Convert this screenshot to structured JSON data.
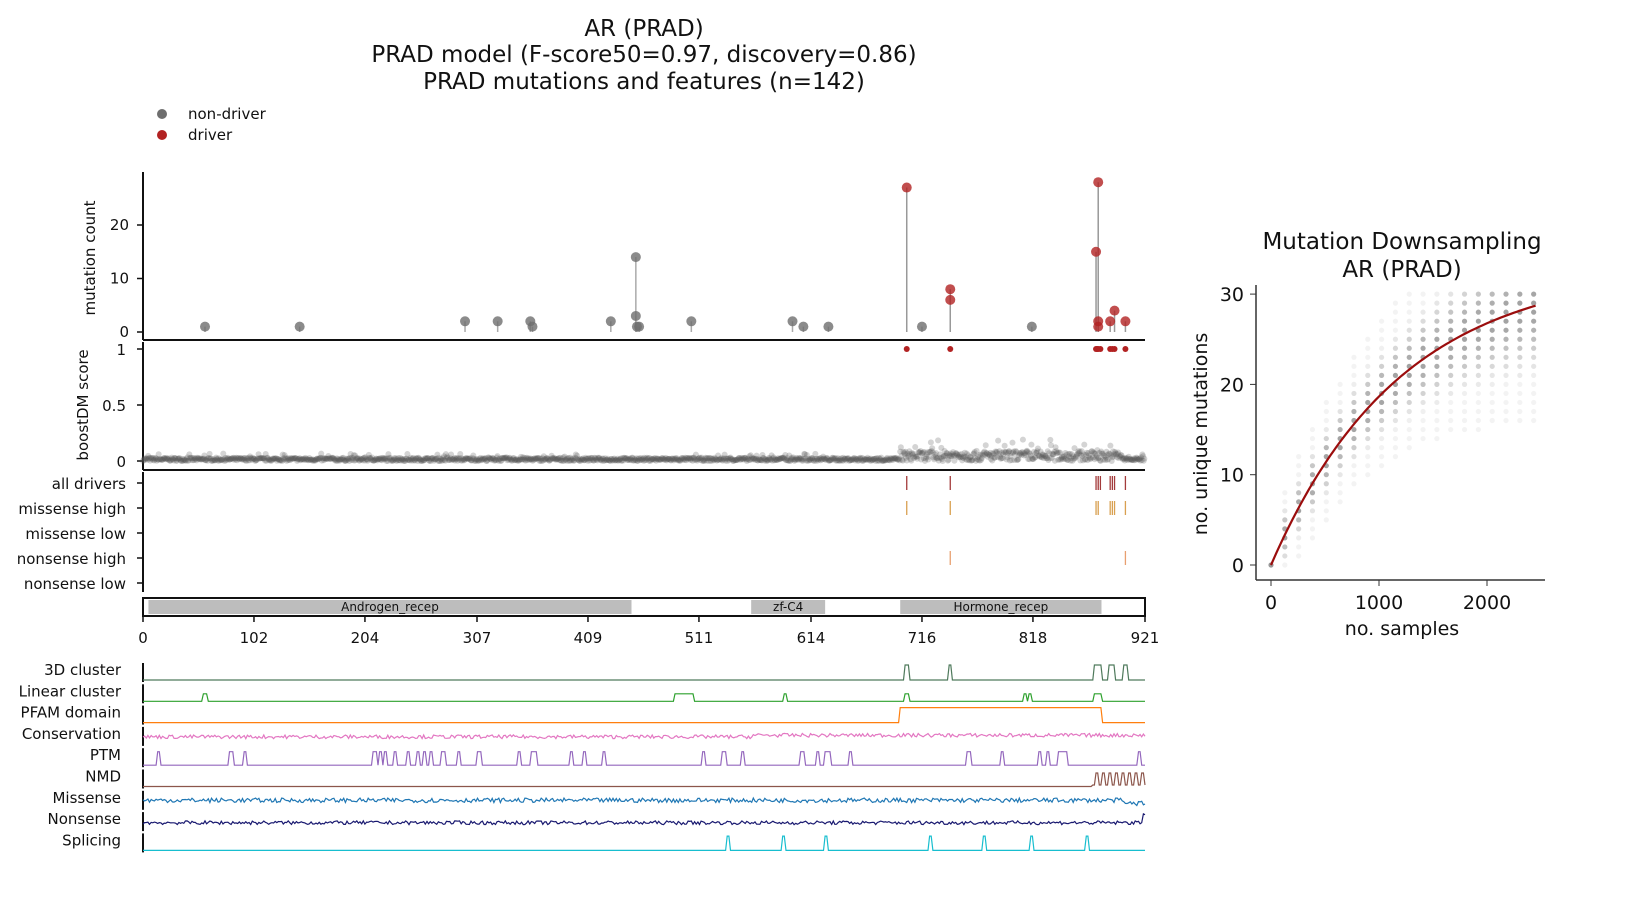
{
  "titles": {
    "line1": "AR (PRAD)",
    "line2": "PRAD model (F-score50=0.97, discovery=0.86)",
    "line3": "PRAD mutations and features (n=142)"
  },
  "legend": [
    {
      "label": "non-driver",
      "color": "#6e6e6e"
    },
    {
      "label": "driver",
      "color": "#b22222"
    }
  ],
  "colors": {
    "nondriver": "#6e6e6e",
    "driver": "#b22222",
    "domain": "#bdbdbd",
    "curve": "#9b0d0d"
  },
  "chart_data": [
    {
      "type": "scatter",
      "name": "mutation-lollipop",
      "ylabel": "mutation count",
      "xlim": [
        0,
        921
      ],
      "ylim": [
        0,
        30
      ],
      "yticks": [
        0,
        10,
        20
      ],
      "mutations": [
        {
          "pos": 57,
          "count": 1,
          "driver": false
        },
        {
          "pos": 144,
          "count": 1,
          "driver": false
        },
        {
          "pos": 296,
          "count": 2,
          "driver": false
        },
        {
          "pos": 326,
          "count": 2,
          "driver": false
        },
        {
          "pos": 356,
          "count": 2,
          "driver": false
        },
        {
          "pos": 358,
          "count": 1,
          "driver": false
        },
        {
          "pos": 430,
          "count": 2,
          "driver": false
        },
        {
          "pos": 453,
          "count": 14,
          "driver": false
        },
        {
          "pos": 453,
          "count": 3,
          "driver": false
        },
        {
          "pos": 454,
          "count": 1,
          "driver": false
        },
        {
          "pos": 456,
          "count": 1,
          "driver": false
        },
        {
          "pos": 504,
          "count": 2,
          "driver": false
        },
        {
          "pos": 597,
          "count": 2,
          "driver": false
        },
        {
          "pos": 607,
          "count": 1,
          "driver": false
        },
        {
          "pos": 630,
          "count": 1,
          "driver": false
        },
        {
          "pos": 702,
          "count": 27,
          "driver": true
        },
        {
          "pos": 716,
          "count": 1,
          "driver": false
        },
        {
          "pos": 742,
          "count": 8,
          "driver": true
        },
        {
          "pos": 742,
          "count": 6,
          "driver": true
        },
        {
          "pos": 817,
          "count": 1,
          "driver": false
        },
        {
          "pos": 876,
          "count": 15,
          "driver": true
        },
        {
          "pos": 878,
          "count": 28,
          "driver": true
        },
        {
          "pos": 878,
          "count": 2,
          "driver": true
        },
        {
          "pos": 878,
          "count": 1,
          "driver": true
        },
        {
          "pos": 889,
          "count": 2,
          "driver": true
        },
        {
          "pos": 893,
          "count": 4,
          "driver": true
        },
        {
          "pos": 903,
          "count": 2,
          "driver": true
        }
      ]
    },
    {
      "type": "scatter",
      "name": "boostdm-score",
      "ylabel": "boostDM score",
      "ylim": [
        0,
        1
      ],
      "yticks": [
        "0",
        "0.5",
        "1"
      ],
      "driver_positions_score1": [
        702,
        742,
        876,
        877,
        878,
        880,
        889,
        891,
        893,
        903
      ],
      "background_score_range": [
        0,
        0.2
      ]
    },
    {
      "type": "table",
      "name": "driver-tracks",
      "rows": [
        {
          "label": "all drivers",
          "color": "#a33b3b",
          "positions": [
            702,
            742,
            876,
            878,
            880,
            889,
            891,
            893,
            903
          ]
        },
        {
          "label": "missense high",
          "color": "#d9a050",
          "positions": [
            702,
            742,
            876,
            878,
            889,
            891,
            893,
            903
          ]
        },
        {
          "label": "missense low",
          "color": "#d9a050",
          "positions": []
        },
        {
          "label": "nonsense high",
          "color": "#e8a070",
          "positions": [
            742,
            903
          ]
        },
        {
          "label": "nonsense low",
          "color": "#e8a070",
          "positions": []
        }
      ]
    },
    {
      "type": "bar",
      "name": "pfam-domains",
      "domains": [
        {
          "label": "Androgen_recep",
          "start": 5,
          "end": 449
        },
        {
          "label": "zf-C4",
          "start": 559,
          "end": 627
        },
        {
          "label": "Hormone_recep",
          "start": 696,
          "end": 881
        }
      ],
      "xticks": [
        "0",
        "102",
        "204",
        "307",
        "409",
        "511",
        "614",
        "716",
        "818",
        "921"
      ]
    },
    {
      "type": "line",
      "name": "feature-tracks",
      "tracks": [
        {
          "label": "3D cluster",
          "color": "#4f7a5c",
          "peaks": [
            702,
            742,
            876,
            878,
            880,
            889,
            892,
            903
          ]
        },
        {
          "label": "Linear cluster",
          "color": "#2ca02c",
          "peaks": [
            57,
            492,
            496,
            500,
            504,
            590,
            702,
            811,
            815,
            876,
            879
          ]
        },
        {
          "label": "PFAM domain",
          "color": "#ff7f0e",
          "peaks": []
        },
        {
          "label": "Conservation",
          "color": "#e377c2",
          "peaks": []
        },
        {
          "label": "PTM",
          "color": "#9467bd",
          "peaks": [
            14,
            81,
            94,
            213,
            218,
            223,
            232,
            244,
            253,
            259,
            265,
            276,
            290,
            309,
            346,
            358,
            361,
            394,
            406,
            424,
            515,
            534,
            551,
            606,
            620,
            628,
            631,
            650,
            759,
            790,
            824,
            832,
            843,
            846,
            848,
            916
          ]
        },
        {
          "label": "NMD",
          "color": "#8c564b",
          "peaks": []
        },
        {
          "label": "Missense",
          "color": "#1f77b4",
          "peaks": []
        },
        {
          "label": "Nonsense",
          "color": "#191970",
          "peaks": []
        },
        {
          "label": "Splicing",
          "color": "#17becf",
          "peaks": [
            538,
            589,
            628,
            724,
            773,
            817,
            868
          ]
        }
      ]
    },
    {
      "type": "scatter",
      "name": "mutation-downsampling",
      "title": "Mutation Downsampling",
      "subtitle": "AR (PRAD)",
      "xlabel": "no. samples",
      "ylabel": "no. unique mutations",
      "xlim": [
        -120,
        2600
      ],
      "ylim": [
        -2,
        31
      ],
      "xticks": [
        "0",
        "1000",
        "2000"
      ],
      "yticks": [
        "0",
        "10",
        "20",
        "30"
      ],
      "fit": {
        "model": "y = 33*(1-exp(-x/1200))",
        "x_max": 2450,
        "y_at_end": 28.6
      }
    }
  ]
}
